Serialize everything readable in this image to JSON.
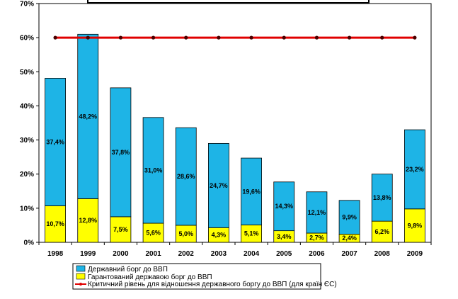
{
  "chart_data": {
    "type": "bar",
    "stacked": true,
    "title": "",
    "xlabel": "",
    "ylabel": "",
    "ylim": [
      0,
      70
    ],
    "y_ticks": [
      "0%",
      "10%",
      "20%",
      "30%",
      "40%",
      "50%",
      "60%",
      "70%"
    ],
    "y_tick_values": [
      0,
      10,
      20,
      30,
      40,
      50,
      60,
      70
    ],
    "categories": [
      "1998",
      "1999",
      "2000",
      "2001",
      "2002",
      "2003",
      "2004",
      "2005",
      "2006",
      "2007",
      "2008",
      "2009"
    ],
    "grid": false,
    "legend_position": "bottom-left",
    "series": [
      {
        "name": "Гарантований державою борг до ВВП",
        "color": "#FFFF00",
        "values": [
          10.7,
          12.8,
          7.5,
          5.6,
          5.0,
          4.3,
          5.1,
          3.4,
          2.7,
          2.4,
          6.2,
          9.8
        ],
        "labels": [
          "10,7%",
          "12,8%",
          "7,5%",
          "5,6%",
          "5,0%",
          "4,3%",
          "5,1%",
          "3,4%",
          "2,7%",
          "2,4%",
          "6,2%",
          "9,8%"
        ]
      },
      {
        "name": "Державний борг до ВВП",
        "color": "#1EB4E6",
        "values": [
          37.4,
          48.2,
          37.8,
          31.0,
          28.6,
          24.7,
          19.6,
          14.3,
          12.1,
          9.9,
          13.8,
          23.2
        ],
        "labels": [
          "37,4%",
          "48,2%",
          "37,8%",
          "31,0%",
          "28,6%",
          "24,7%",
          "19,6%",
          "14,3%",
          "12,1%",
          "9,9%",
          "13,8%",
          "23,2%"
        ]
      }
    ],
    "line": {
      "name": "Критичний рівень для відношення державного боргу до ВВП (для країн ЄС)",
      "color": "#E00000",
      "value": 60
    }
  },
  "legend": {
    "items": [
      {
        "label": "Державний борг до ВВП",
        "color": "#1EB4E6",
        "kind": "box"
      },
      {
        "label": "Гарантований державою борг до ВВП",
        "color": "#FFFF00",
        "kind": "box"
      },
      {
        "label": "Критичний рівень для відношення державного боргу до ВВП (для країн ЄС)",
        "color": "#E00000",
        "kind": "line"
      }
    ]
  }
}
